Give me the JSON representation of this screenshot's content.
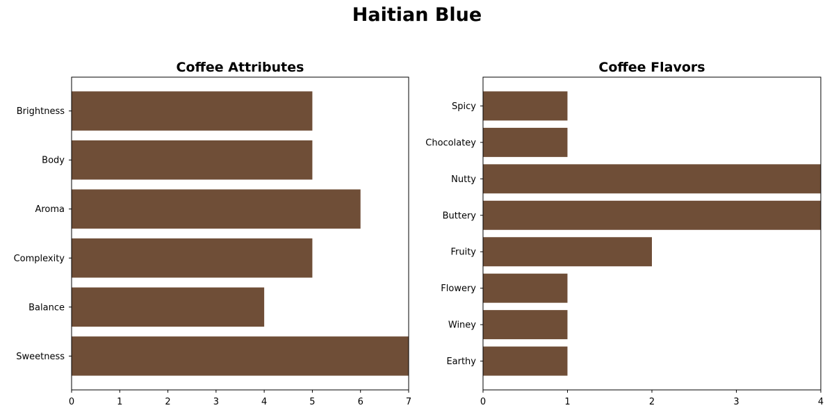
{
  "figure": {
    "title": "Haitian Blue"
  },
  "chart_data": [
    {
      "type": "bar",
      "orientation": "horizontal",
      "title": "Coffee Attributes",
      "xlabel": "",
      "ylabel": "",
      "categories": [
        "Brightness",
        "Body",
        "Aroma",
        "Complexity",
        "Balance",
        "Sweetness"
      ],
      "values": [
        5,
        5,
        6,
        5,
        4,
        7
      ],
      "xlim": [
        0,
        7
      ],
      "xticks": [
        0,
        1,
        2,
        3,
        4,
        5,
        6,
        7
      ],
      "bar_color": "#6f4e37",
      "grid": false
    },
    {
      "type": "bar",
      "orientation": "horizontal",
      "title": "Coffee Flavors",
      "xlabel": "",
      "ylabel": "",
      "categories": [
        "Spicy",
        "Chocolatey",
        "Nutty",
        "Buttery",
        "Fruity",
        "Flowery",
        "Winey",
        "Earthy"
      ],
      "values": [
        1,
        1,
        4,
        4,
        2,
        1,
        1,
        1
      ],
      "xlim": [
        0,
        4
      ],
      "xticks": [
        0,
        1,
        2,
        3,
        4
      ],
      "bar_color": "#6f4e37",
      "grid": false
    }
  ]
}
